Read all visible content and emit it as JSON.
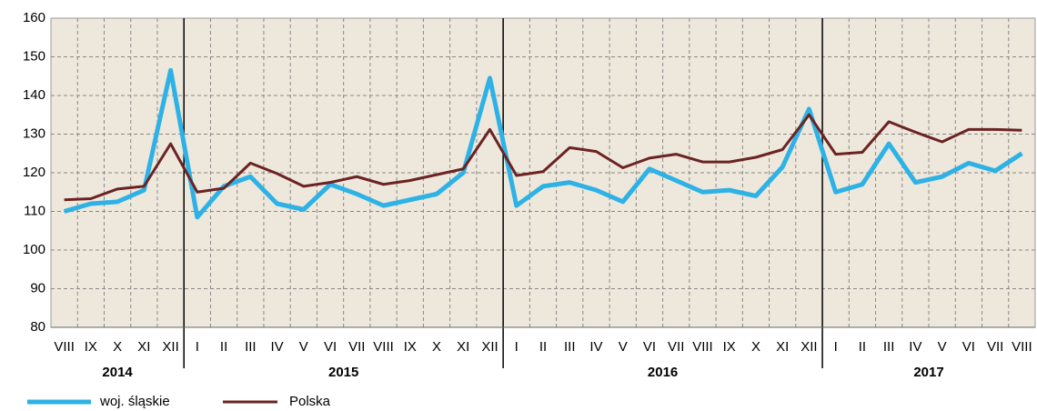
{
  "chart_data": {
    "type": "line",
    "groups": [
      {
        "label": "2014",
        "categories": [
          "VIII",
          "IX",
          "X",
          "XI",
          "XII"
        ]
      },
      {
        "label": "2015",
        "categories": [
          "I",
          "II",
          "III",
          "IV",
          "V",
          "VI",
          "VII",
          "VIII",
          "IX",
          "X",
          "XI",
          "XII"
        ]
      },
      {
        "label": "2016",
        "categories": [
          "I",
          "II",
          "III",
          "IV",
          "V",
          "VI",
          "VII",
          "VIII",
          "IX",
          "X",
          "XI",
          "XII"
        ]
      },
      {
        "label": "2017",
        "categories": [
          "I",
          "II",
          "III",
          "IV",
          "V",
          "VI",
          "VII",
          "VIII"
        ]
      }
    ],
    "series": [
      {
        "name": "woj. śląskie",
        "color": "#2eb2e6",
        "values": [
          110,
          112,
          112.5,
          115.5,
          146.5,
          108.5,
          116.5,
          119,
          112,
          110.5,
          117,
          114.5,
          111.5,
          113,
          114.5,
          120,
          144.5,
          111.5,
          116.5,
          117.5,
          115.5,
          112.5,
          121,
          118,
          115,
          115.5,
          114,
          121.5,
          136.5,
          115,
          117,
          127.5,
          117.5,
          119,
          122.5,
          120.5,
          125
        ]
      },
      {
        "name": "Polska",
        "color": "#6b2323",
        "values": [
          113,
          113.3,
          115.8,
          116.5,
          127.5,
          115,
          116,
          122.5,
          119.8,
          116.5,
          117.5,
          119,
          117,
          118,
          119.5,
          121,
          131.2,
          119.3,
          120.3,
          126.5,
          125.5,
          121.3,
          123.8,
          124.8,
          122.8,
          122.8,
          124,
          126,
          135,
          124.8,
          125.3,
          133.2,
          130.5,
          128,
          131.2,
          131.2,
          131
        ]
      }
    ],
    "ylim": [
      80,
      160
    ],
    "yticks": [
      80,
      90,
      100,
      110,
      120,
      130,
      140,
      150,
      160
    ],
    "grid": true
  }
}
